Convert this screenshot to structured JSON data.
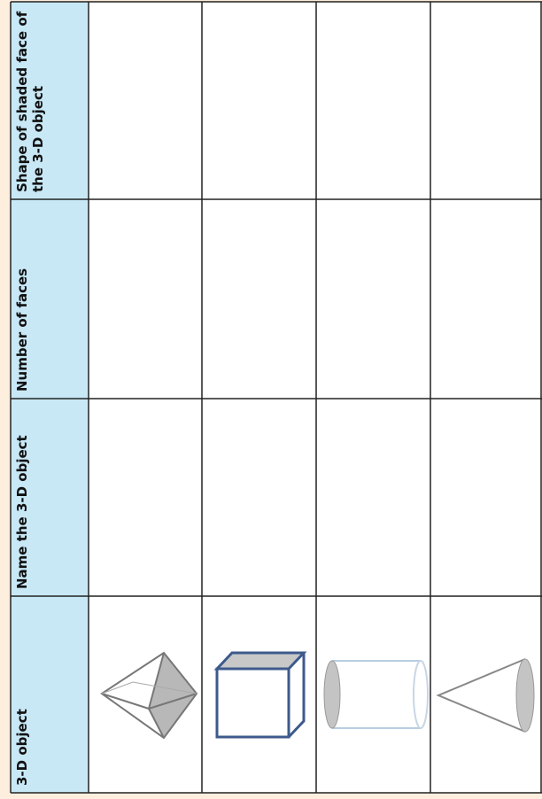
{
  "table": {
    "headers": [
      "3-D object",
      "Name the 3-D object",
      "Number of faces",
      "Shape of shaded face of the 3-D object"
    ]
  }
}
